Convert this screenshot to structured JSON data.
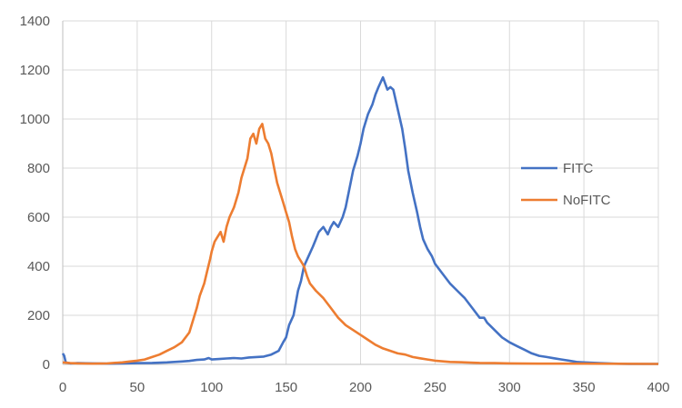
{
  "chart_data": {
    "type": "line",
    "title": "",
    "xlabel": "",
    "ylabel": "",
    "xlim": [
      0,
      400
    ],
    "ylim": [
      0,
      1400
    ],
    "x_ticks": [
      0,
      50,
      100,
      150,
      200,
      250,
      300,
      350,
      400
    ],
    "y_ticks": [
      0,
      200,
      400,
      600,
      800,
      1000,
      1200,
      1400
    ],
    "grid": true,
    "legend_position": "right",
    "series": [
      {
        "name": "FITC",
        "color": "#4472C4",
        "points": [
          [
            0,
            45
          ],
          [
            1,
            35
          ],
          [
            2,
            8
          ],
          [
            5,
            4
          ],
          [
            10,
            5
          ],
          [
            20,
            4
          ],
          [
            30,
            3
          ],
          [
            40,
            4
          ],
          [
            50,
            5
          ],
          [
            60,
            6
          ],
          [
            70,
            8
          ],
          [
            80,
            12
          ],
          [
            85,
            14
          ],
          [
            90,
            18
          ],
          [
            95,
            20
          ],
          [
            98,
            26
          ],
          [
            100,
            20
          ],
          [
            105,
            22
          ],
          [
            110,
            24
          ],
          [
            115,
            26
          ],
          [
            120,
            24
          ],
          [
            125,
            28
          ],
          [
            130,
            30
          ],
          [
            135,
            32
          ],
          [
            140,
            40
          ],
          [
            145,
            55
          ],
          [
            148,
            90
          ],
          [
            150,
            110
          ],
          [
            152,
            160
          ],
          [
            155,
            200
          ],
          [
            158,
            300
          ],
          [
            160,
            340
          ],
          [
            162,
            400
          ],
          [
            165,
            440
          ],
          [
            168,
            480
          ],
          [
            170,
            510
          ],
          [
            172,
            540
          ],
          [
            175,
            560
          ],
          [
            178,
            530
          ],
          [
            180,
            560
          ],
          [
            182,
            580
          ],
          [
            185,
            560
          ],
          [
            188,
            600
          ],
          [
            190,
            640
          ],
          [
            192,
            700
          ],
          [
            195,
            790
          ],
          [
            198,
            850
          ],
          [
            200,
            900
          ],
          [
            202,
            960
          ],
          [
            205,
            1020
          ],
          [
            208,
            1060
          ],
          [
            210,
            1100
          ],
          [
            212,
            1130
          ],
          [
            215,
            1170
          ],
          [
            218,
            1120
          ],
          [
            220,
            1130
          ],
          [
            222,
            1120
          ],
          [
            225,
            1040
          ],
          [
            228,
            960
          ],
          [
            230,
            880
          ],
          [
            232,
            790
          ],
          [
            235,
            700
          ],
          [
            238,
            620
          ],
          [
            240,
            560
          ],
          [
            242,
            510
          ],
          [
            245,
            470
          ],
          [
            248,
            440
          ],
          [
            250,
            410
          ],
          [
            255,
            370
          ],
          [
            260,
            330
          ],
          [
            265,
            300
          ],
          [
            270,
            270
          ],
          [
            275,
            230
          ],
          [
            280,
            190
          ],
          [
            283,
            190
          ],
          [
            285,
            170
          ],
          [
            290,
            140
          ],
          [
            295,
            110
          ],
          [
            300,
            90
          ],
          [
            305,
            75
          ],
          [
            310,
            60
          ],
          [
            315,
            45
          ],
          [
            320,
            35
          ],
          [
            325,
            30
          ],
          [
            330,
            25
          ],
          [
            335,
            20
          ],
          [
            340,
            15
          ],
          [
            345,
            10
          ],
          [
            350,
            8
          ],
          [
            360,
            5
          ],
          [
            370,
            3
          ],
          [
            380,
            2
          ],
          [
            390,
            2
          ],
          [
            400,
            2
          ]
        ]
      },
      {
        "name": "NoFITC",
        "color": "#ED7D31",
        "points": [
          [
            0,
            8
          ],
          [
            5,
            5
          ],
          [
            10,
            4
          ],
          [
            20,
            3
          ],
          [
            30,
            4
          ],
          [
            40,
            8
          ],
          [
            45,
            12
          ],
          [
            50,
            15
          ],
          [
            55,
            20
          ],
          [
            60,
            30
          ],
          [
            65,
            40
          ],
          [
            70,
            55
          ],
          [
            75,
            70
          ],
          [
            80,
            90
          ],
          [
            85,
            130
          ],
          [
            88,
            190
          ],
          [
            90,
            230
          ],
          [
            92,
            280
          ],
          [
            95,
            330
          ],
          [
            97,
            380
          ],
          [
            99,
            430
          ],
          [
            100,
            460
          ],
          [
            102,
            500
          ],
          [
            104,
            520
          ],
          [
            106,
            540
          ],
          [
            108,
            500
          ],
          [
            110,
            560
          ],
          [
            112,
            600
          ],
          [
            115,
            640
          ],
          [
            118,
            700
          ],
          [
            120,
            760
          ],
          [
            122,
            800
          ],
          [
            124,
            840
          ],
          [
            126,
            920
          ],
          [
            128,
            940
          ],
          [
            130,
            900
          ],
          [
            132,
            960
          ],
          [
            134,
            980
          ],
          [
            136,
            920
          ],
          [
            138,
            900
          ],
          [
            140,
            860
          ],
          [
            142,
            800
          ],
          [
            144,
            740
          ],
          [
            146,
            700
          ],
          [
            148,
            660
          ],
          [
            150,
            620
          ],
          [
            152,
            580
          ],
          [
            154,
            520
          ],
          [
            156,
            470
          ],
          [
            158,
            440
          ],
          [
            160,
            420
          ],
          [
            162,
            400
          ],
          [
            164,
            360
          ],
          [
            166,
            330
          ],
          [
            170,
            300
          ],
          [
            175,
            270
          ],
          [
            180,
            230
          ],
          [
            185,
            190
          ],
          [
            190,
            160
          ],
          [
            195,
            140
          ],
          [
            200,
            120
          ],
          [
            205,
            100
          ],
          [
            210,
            80
          ],
          [
            215,
            65
          ],
          [
            220,
            55
          ],
          [
            225,
            45
          ],
          [
            230,
            40
          ],
          [
            235,
            30
          ],
          [
            240,
            25
          ],
          [
            245,
            20
          ],
          [
            250,
            15
          ],
          [
            260,
            10
          ],
          [
            270,
            8
          ],
          [
            280,
            6
          ],
          [
            290,
            5
          ],
          [
            300,
            4
          ],
          [
            320,
            3
          ],
          [
            350,
            3
          ],
          [
            400,
            2
          ]
        ]
      }
    ]
  }
}
